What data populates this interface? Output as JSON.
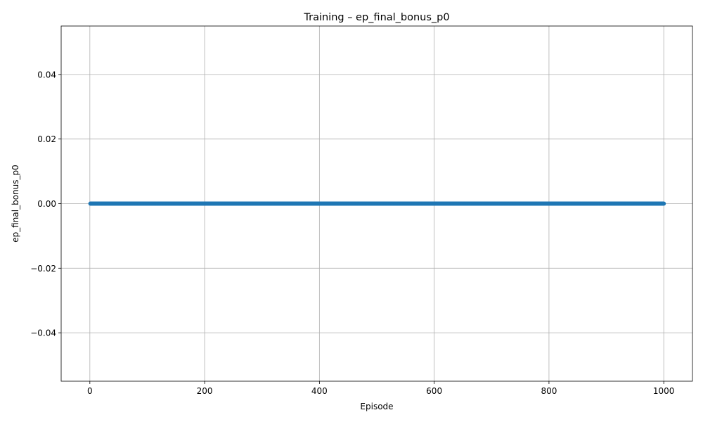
{
  "chart_data": {
    "type": "scatter",
    "title": "Training – ep_final_bonus_p0",
    "xlabel": "Episode",
    "ylabel": "ep_final_bonus_p0",
    "xlim": [
      -50,
      1050
    ],
    "ylim": [
      -0.055,
      0.055
    ],
    "xticks": [
      0,
      200,
      400,
      600,
      800,
      1000
    ],
    "yticks": [
      -0.04,
      -0.02,
      0.0,
      0.02,
      0.04
    ],
    "xtick_labels": [
      "0",
      "200",
      "400",
      "600",
      "800",
      "1000"
    ],
    "ytick_labels": [
      "−0.04",
      "−0.02",
      "0.00",
      "0.02",
      "0.04"
    ],
    "grid": true,
    "series": [
      {
        "x_start": 1,
        "x_end": 1000,
        "x_step": 1,
        "y_constant": 0.0,
        "color": "#1f77b4",
        "marker": "circle",
        "line": true
      }
    ]
  }
}
